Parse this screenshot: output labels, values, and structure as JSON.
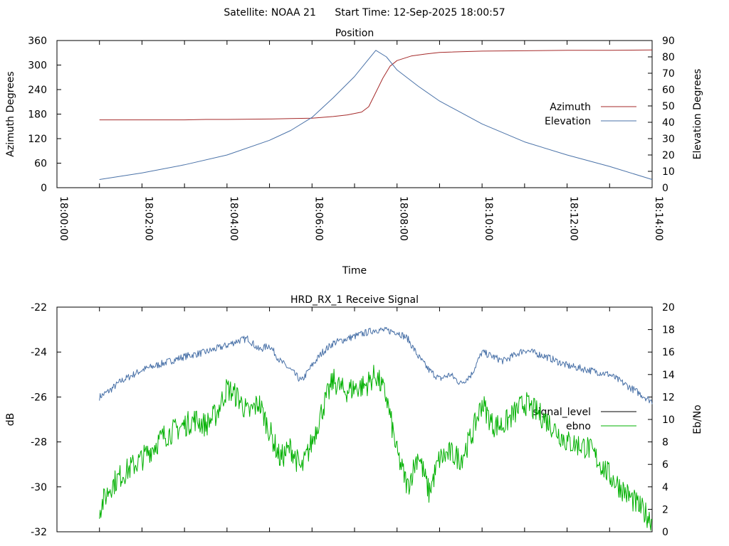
{
  "header": {
    "satellite_label": "Satellite: NOAA 21",
    "start_time_label": "Start Time: 12-Sep-2025 18:00:57"
  },
  "chart_data": [
    {
      "type": "line",
      "title": "Position",
      "xlabel": "Time",
      "ylabel": "Azimuth Degrees",
      "y2label": "Elevation Degrees",
      "xlim": [
        "18:00:00",
        "18:14:00"
      ],
      "x_ticks": [
        "18:00:00",
        "18:02:00",
        "18:04:00",
        "18:06:00",
        "18:08:00",
        "18:10:00",
        "18:12:00",
        "18:14:00"
      ],
      "ylim": [
        0,
        360
      ],
      "y_ticks": [
        0,
        60,
        120,
        180,
        240,
        300,
        360
      ],
      "y2lim": [
        0,
        90
      ],
      "y2_ticks": [
        0,
        10,
        20,
        30,
        40,
        50,
        60,
        70,
        80,
        90
      ],
      "legend": "right",
      "grid": false,
      "series": [
        {
          "name": "Azimuth",
          "axis": "left",
          "color": "#a52a2a",
          "x": [
            "18:01:00",
            "18:02:00",
            "18:03:00",
            "18:03:30",
            "18:04:00",
            "18:05:00",
            "18:05:30",
            "18:06:00",
            "18:06:30",
            "18:06:50",
            "18:07:10",
            "18:07:20",
            "18:07:30",
            "18:07:40",
            "18:07:50",
            "18:08:00",
            "18:08:20",
            "18:08:40",
            "18:09:00",
            "18:10:00",
            "18:11:00",
            "18:12:00",
            "18:13:00",
            "18:14:00"
          ],
          "y": [
            166,
            166,
            166,
            167,
            167,
            168,
            169,
            170,
            174,
            178,
            185,
            198,
            233,
            268,
            297,
            311,
            322,
            327,
            331,
            334,
            335,
            336,
            336,
            337
          ]
        },
        {
          "name": "Elevation",
          "axis": "right",
          "color": "#4a72a8",
          "x": [
            "18:01:00",
            "18:02:00",
            "18:03:00",
            "18:04:00",
            "18:05:00",
            "18:05:30",
            "18:06:00",
            "18:06:30",
            "18:07:00",
            "18:07:15",
            "18:07:30",
            "18:07:45",
            "18:08:00",
            "18:08:30",
            "18:09:00",
            "18:10:00",
            "18:11:00",
            "18:12:00",
            "18:13:00",
            "18:14:00"
          ],
          "y": [
            5,
            9,
            14,
            20,
            29,
            35,
            43,
            55,
            68,
            76,
            84,
            80,
            72,
            62,
            53,
            39,
            28,
            20,
            13,
            5
          ]
        }
      ]
    },
    {
      "type": "line",
      "title": "HRD_RX_1 Receive Signal",
      "xlabel": "",
      "ylabel": "dB",
      "y2label": "Eb/No",
      "xlim": [
        "18:00:00",
        "18:14:00"
      ],
      "ylim": [
        -32,
        -22
      ],
      "y_ticks": [
        -32,
        -30,
        -28,
        -26,
        -24,
        -22
      ],
      "y2lim": [
        0,
        20
      ],
      "y2_ticks": [
        0,
        2,
        4,
        6,
        8,
        10,
        12,
        14,
        16,
        18,
        20
      ],
      "legend": "right",
      "grid": false,
      "series": [
        {
          "name": "signal_level",
          "axis": "left",
          "color": "#4a72a8",
          "x": [
            "18:01:00",
            "18:01:15",
            "18:01:30",
            "18:02:00",
            "18:02:30",
            "18:03:00",
            "18:03:30",
            "18:04:00",
            "18:04:15",
            "18:04:30",
            "18:04:45",
            "18:05:00",
            "18:05:15",
            "18:05:30",
            "18:05:45",
            "18:06:00",
            "18:06:15",
            "18:06:30",
            "18:07:00",
            "18:07:30",
            "18:08:00",
            "18:08:15",
            "18:08:30",
            "18:08:45",
            "18:09:00",
            "18:09:15",
            "18:09:30",
            "18:09:45",
            "18:10:00",
            "18:10:30",
            "18:11:00",
            "18:11:30",
            "18:12:00",
            "18:12:30",
            "18:13:00",
            "18:13:30",
            "18:14:00"
          ],
          "y": [
            -26.0,
            -25.7,
            -25.3,
            -24.8,
            -24.5,
            -24.2,
            -24.0,
            -23.7,
            -23.5,
            -23.4,
            -23.9,
            -23.7,
            -24.4,
            -24.8,
            -25.3,
            -24.6,
            -24.0,
            -23.6,
            -23.3,
            -23.0,
            -23.1,
            -23.4,
            -24.2,
            -24.8,
            -25.2,
            -25.0,
            -25.4,
            -25.0,
            -24.0,
            -24.4,
            -23.9,
            -24.2,
            -24.6,
            -24.8,
            -25.0,
            -25.6,
            -26.2
          ]
        },
        {
          "name": "ebno",
          "axis": "right",
          "color": "#00b000",
          "x": [
            "18:01:00",
            "18:01:15",
            "18:01:30",
            "18:02:00",
            "18:02:30",
            "18:03:00",
            "18:03:15",
            "18:03:30",
            "18:03:45",
            "18:04:00",
            "18:04:15",
            "18:04:30",
            "18:04:45",
            "18:05:00",
            "18:05:15",
            "18:05:30",
            "18:05:45",
            "18:06:00",
            "18:06:15",
            "18:06:30",
            "18:06:45",
            "18:07:00",
            "18:07:15",
            "18:07:30",
            "18:07:45",
            "18:08:00",
            "18:08:15",
            "18:08:30",
            "18:08:45",
            "18:09:00",
            "18:09:15",
            "18:09:30",
            "18:09:45",
            "18:10:00",
            "18:10:15",
            "18:10:30",
            "18:11:00",
            "18:11:30",
            "18:12:00",
            "18:12:30",
            "18:13:00",
            "18:13:30",
            "18:14:00"
          ],
          "y": [
            2.0,
            4.0,
            5.0,
            6.5,
            8.5,
            9.5,
            10.0,
            9.5,
            10.5,
            12.8,
            12.0,
            10.5,
            11.5,
            9.0,
            6.5,
            7.5,
            5.5,
            8.0,
            11.0,
            13.5,
            12.5,
            12.8,
            13.0,
            14.0,
            12.0,
            7.0,
            4.0,
            7.0,
            3.5,
            6.5,
            7.0,
            6.5,
            8.5,
            11.5,
            9.5,
            9.5,
            11.5,
            10.0,
            8.0,
            7.5,
            5.0,
            3.0,
            1.0
          ]
        }
      ]
    }
  ]
}
